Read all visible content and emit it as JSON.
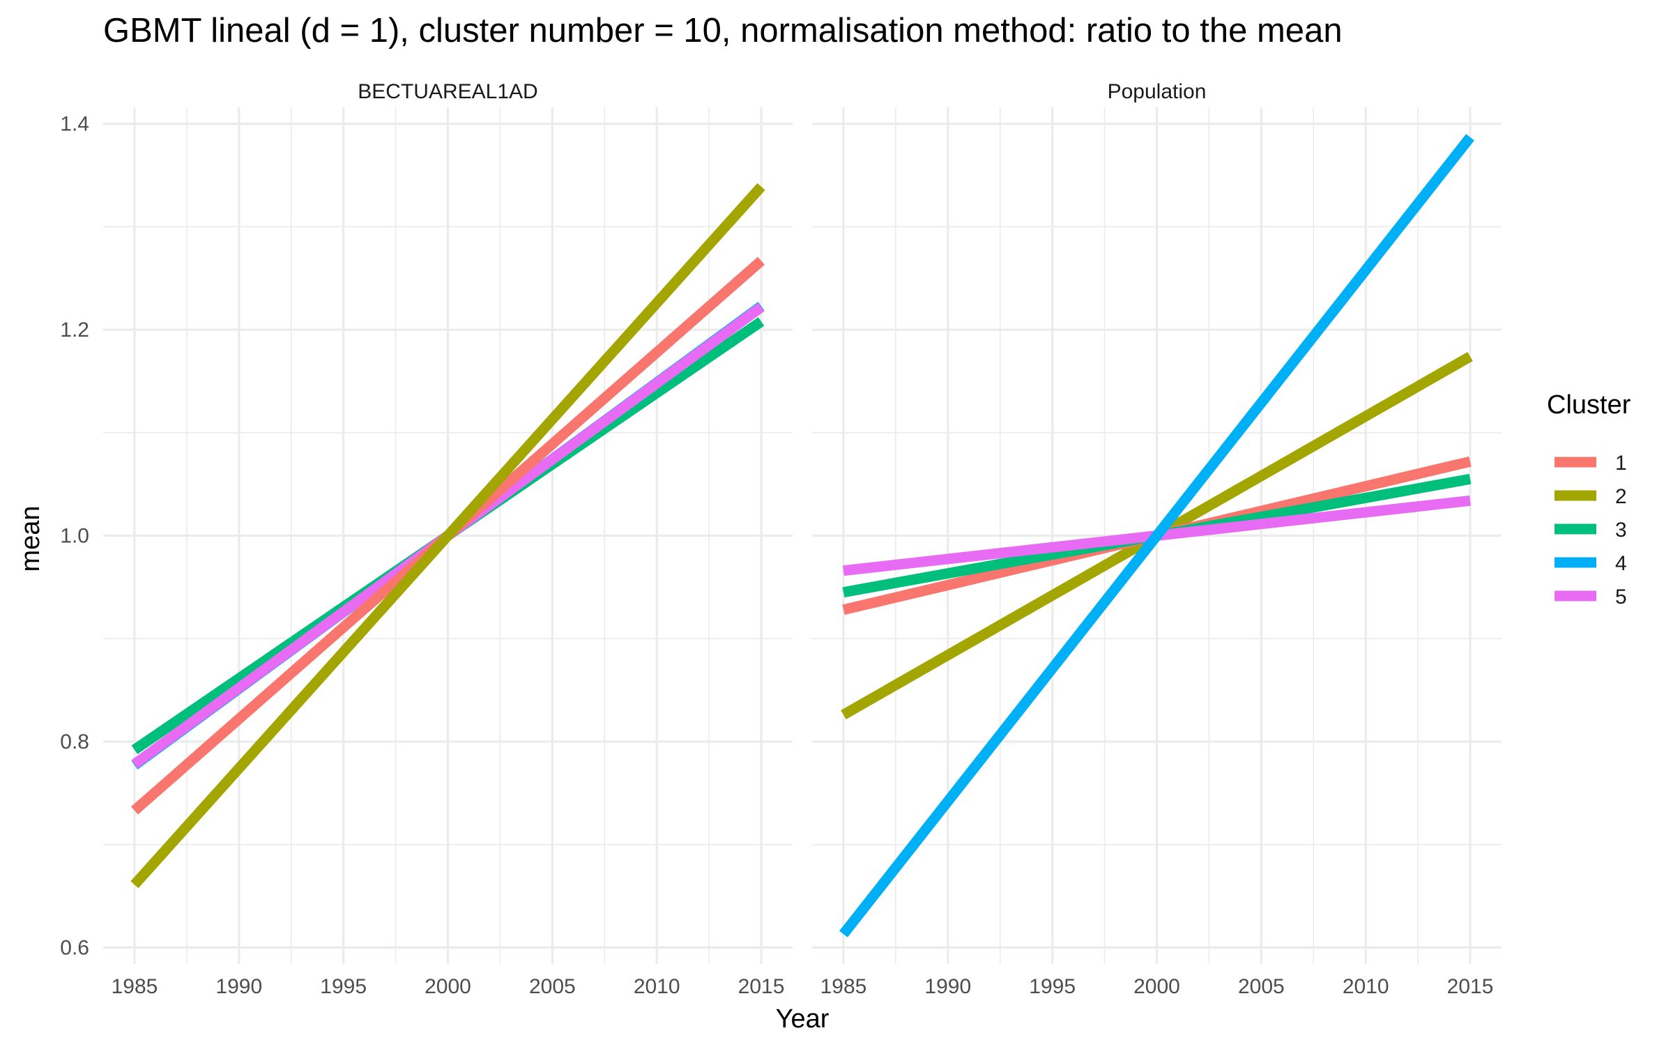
{
  "chart_data": {
    "type": "line",
    "title": "GBMT lineal (d = 1), cluster number = 10, normalisation method: ratio to the mean",
    "xlabel": "Year",
    "ylabel": "mean",
    "xlim": [
      1985,
      2015
    ],
    "ylim": [
      0.6,
      1.4
    ],
    "x_ticks": [
      1985,
      1990,
      1995,
      2000,
      2005,
      2010,
      2015
    ],
    "x_tick_labels": [
      "1985",
      "1990",
      "1995",
      "2000",
      "2005",
      "2010",
      "2015"
    ],
    "y_ticks": [
      0.6,
      0.8,
      1.0,
      1.2,
      1.4
    ],
    "y_tick_labels": [
      "0.6",
      "0.8",
      "1.0",
      "1.2",
      "1.4"
    ],
    "grid": true,
    "legend": {
      "title": "Cluster",
      "position": "right",
      "entries": [
        {
          "label": "1",
          "color": "#F8766D"
        },
        {
          "label": "2",
          "color": "#A3A500"
        },
        {
          "label": "3",
          "color": "#00BF7D"
        },
        {
          "label": "4",
          "color": "#00B0F6"
        },
        {
          "label": "5",
          "color": "#E76BF3"
        }
      ]
    },
    "panels": [
      {
        "strip": "BECTUAREAL1AD",
        "series": [
          {
            "name": "4",
            "color": "#00B0F6",
            "x": [
              1985,
              2015
            ],
            "y": [
              0.777,
              1.223
            ]
          },
          {
            "name": "3",
            "color": "#00BF7D",
            "x": [
              1985,
              2015
            ],
            "y": [
              0.792,
              1.208
            ]
          },
          {
            "name": "5",
            "color": "#E76BF3",
            "x": [
              1985,
              2015
            ],
            "y": [
              0.778,
              1.222
            ]
          },
          {
            "name": "1",
            "color": "#F8766D",
            "x": [
              1985,
              2015
            ],
            "y": [
              0.733,
              1.267
            ]
          },
          {
            "name": "2",
            "color": "#A3A500",
            "x": [
              1985,
              2015
            ],
            "y": [
              0.661,
              1.339
            ]
          }
        ]
      },
      {
        "strip": "Population",
        "series": [
          {
            "name": "2",
            "color": "#A3A500",
            "x": [
              1985,
              2015
            ],
            "y": [
              0.826,
              1.174
            ]
          },
          {
            "name": "1",
            "color": "#F8766D",
            "x": [
              1985,
              2015
            ],
            "y": [
              0.928,
              1.072
            ]
          },
          {
            "name": "3",
            "color": "#00BF7D",
            "x": [
              1985,
              2015
            ],
            "y": [
              0.945,
              1.055
            ]
          },
          {
            "name": "5",
            "color": "#E76BF3",
            "x": [
              1985,
              2015
            ],
            "y": [
              0.966,
              1.034
            ]
          },
          {
            "name": "4",
            "color": "#00B0F6",
            "x": [
              1985,
              2015
            ],
            "y": [
              0.613,
              1.387
            ]
          }
        ]
      }
    ]
  }
}
